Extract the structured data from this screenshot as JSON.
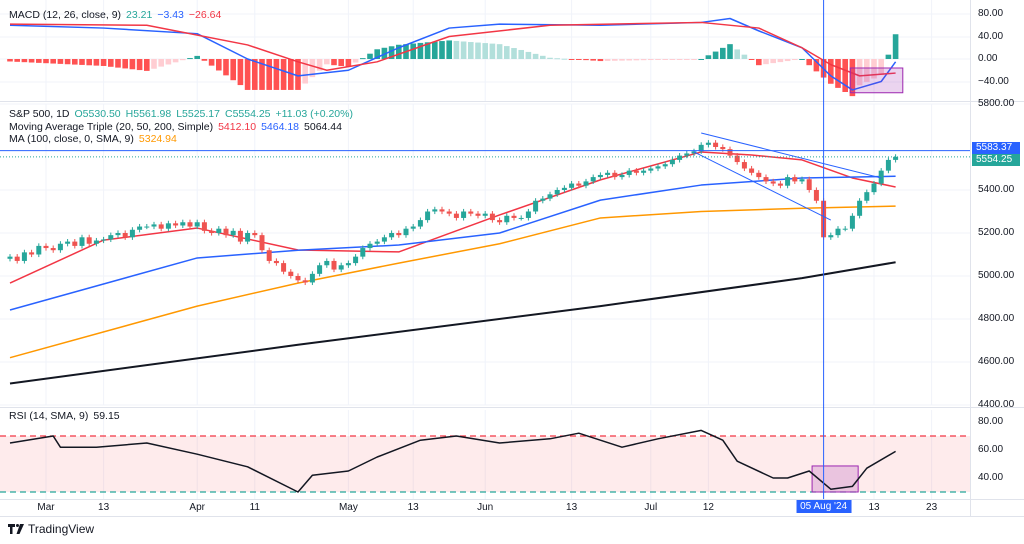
{
  "chart_data": {
    "type": "candlestick",
    "symbol_legend": {
      "name": "S&P 500, 1D",
      "open": "O5530.50",
      "high": "H5561.98",
      "low": "L5525.17",
      "close": "C5554.25",
      "change": "+11.03 (+0.20%)"
    },
    "ma_triple_legend": {
      "label": "Moving Average Triple (20, 50, 200, Simple)",
      "v20": "5412.10",
      "v50": "5464.18",
      "v200": "5064.44"
    },
    "ma100_legend": {
      "label": "MA (100, close, 0, SMA, 9)",
      "value": "5324.94"
    },
    "macd_legend": {
      "label": "MACD (12, 26, close, 9)",
      "hist": "23.21",
      "macd": "−3.43",
      "signal": "−26.64"
    },
    "rsi_legend": {
      "label": "RSI (14, SMA, 9)",
      "value": "59.15"
    },
    "closes": [
      5090,
      5070,
      5110,
      5100,
      5140,
      5130,
      5120,
      5150,
      5160,
      5140,
      5180,
      5150,
      5165,
      5170,
      5190,
      5200,
      5180,
      5215,
      5230,
      5230,
      5240,
      5220,
      5245,
      5235,
      5250,
      5230,
      5250,
      5210,
      5200,
      5220,
      5190,
      5210,
      5160,
      5200,
      5190,
      5120,
      5070,
      5060,
      5020,
      5000,
      4980,
      4970,
      5010,
      5050,
      5070,
      5030,
      5050,
      5060,
      5090,
      5130,
      5150,
      5160,
      5180,
      5200,
      5190,
      5220,
      5230,
      5260,
      5300,
      5310,
      5300,
      5290,
      5270,
      5300,
      5290,
      5280,
      5290,
      5260,
      5250,
      5280,
      5270,
      5270,
      5300,
      5350,
      5360,
      5380,
      5400,
      5410,
      5430,
      5420,
      5440,
      5460,
      5470,
      5480,
      5460,
      5470,
      5490,
      5480,
      5490,
      5500,
      5510,
      5520,
      5540,
      5560,
      5570,
      5580,
      5610,
      5620,
      5600,
      5590,
      5560,
      5530,
      5500,
      5480,
      5460,
      5440,
      5430,
      5420,
      5460,
      5440,
      5450,
      5400,
      5350,
      5180,
      5190,
      5220,
      5220,
      5280,
      5350,
      5390,
      5430,
      5490,
      5540,
      5554.25
    ],
    "moving_averages": [
      {
        "name": "SMA 20",
        "color": "#f23645",
        "points": [
          [
            0,
            4967
          ],
          [
            13,
            5167
          ],
          [
            26,
            5223
          ],
          [
            40,
            5121
          ],
          [
            54,
            5112
          ],
          [
            68,
            5284
          ],
          [
            82,
            5447
          ],
          [
            96,
            5577
          ],
          [
            103,
            5563
          ],
          [
            110,
            5540
          ],
          [
            117,
            5456
          ],
          [
            123,
            5414
          ]
        ]
      },
      {
        "name": "SMA 50",
        "color": "#2962ff",
        "points": [
          [
            0,
            4842
          ],
          [
            26,
            5084
          ],
          [
            40,
            5120
          ],
          [
            54,
            5144
          ],
          [
            68,
            5200
          ],
          [
            82,
            5353
          ],
          [
            96,
            5423
          ],
          [
            110,
            5456
          ],
          [
            123,
            5464
          ]
        ]
      },
      {
        "name": "SMA 200",
        "color": "#131722",
        "points": [
          [
            0,
            4500
          ],
          [
            40,
            4680
          ],
          [
            82,
            4860
          ],
          [
            110,
            4990
          ],
          [
            123,
            5064
          ]
        ]
      },
      {
        "name": "SMA 100",
        "color": "#ff9800",
        "points": [
          [
            0,
            4620
          ],
          [
            26,
            4860
          ],
          [
            40,
            4967
          ],
          [
            54,
            5060
          ],
          [
            68,
            5150
          ],
          [
            82,
            5270
          ],
          [
            96,
            5300
          ],
          [
            110,
            5315
          ],
          [
            123,
            5325
          ]
        ]
      }
    ],
    "price_axis": {
      "ticks": [
        "5800.00",
        "5400.00",
        "5200.00",
        "5000.00",
        "4800.00",
        "4600.00",
        "4400.00"
      ],
      "range": [
        4400,
        5800
      ]
    },
    "price_tags": [
      {
        "value": "5583.37",
        "color": "#2962ff"
      },
      {
        "value": "5554.25",
        "color": "#26a69a"
      }
    ],
    "horizontal_line": 5583.37,
    "trendlines": [
      [
        [
          96,
          5665
        ],
        [
          121,
          5456
        ]
      ],
      [
        [
          95,
          5577
        ],
        [
          114,
          5260
        ]
      ]
    ],
    "vertical_line_index": 113,
    "macd": {
      "axis_ticks": [
        "80.00",
        "40.00",
        "0.00",
        "−40.00"
      ],
      "range": [
        -80,
        80
      ],
      "macd_points": [
        [
          0,
          60
        ],
        [
          13,
          55
        ],
        [
          26,
          45
        ],
        [
          33,
          0
        ],
        [
          40,
          -30
        ],
        [
          47,
          -20
        ],
        [
          54,
          20
        ],
        [
          61,
          55
        ],
        [
          68,
          62
        ],
        [
          82,
          60
        ],
        [
          96,
          65
        ],
        [
          100,
          72
        ],
        [
          104,
          50
        ],
        [
          110,
          20
        ],
        [
          114,
          -30
        ],
        [
          117,
          -55
        ],
        [
          121,
          -40
        ],
        [
          123,
          -5
        ]
      ],
      "signal_points": [
        [
          0,
          62
        ],
        [
          19,
          60
        ],
        [
          33,
          25
        ],
        [
          40,
          -5
        ],
        [
          44,
          -20
        ],
        [
          51,
          -5
        ],
        [
          61,
          40
        ],
        [
          75,
          60
        ],
        [
          96,
          65
        ],
        [
          104,
          55
        ],
        [
          110,
          20
        ],
        [
          114,
          -10
        ],
        [
          118,
          -30
        ],
        [
          123,
          -25
        ]
      ],
      "box": {
        "from": 116.7,
        "to": 124,
        "top": -16,
        "bottom": -60
      }
    },
    "rsi": {
      "axis_ticks": [
        "80.00",
        "60.00",
        "40.00"
      ],
      "upper_band": 70,
      "lower_band": 30,
      "points": [
        [
          0,
          65
        ],
        [
          6,
          70
        ],
        [
          7,
          62
        ],
        [
          12,
          62
        ],
        [
          19,
          65
        ],
        [
          26,
          57
        ],
        [
          33,
          48
        ],
        [
          40,
          30
        ],
        [
          42,
          42
        ],
        [
          47,
          45
        ],
        [
          51,
          55
        ],
        [
          57,
          67
        ],
        [
          62,
          70
        ],
        [
          68,
          65
        ],
        [
          75,
          68
        ],
        [
          79,
          72
        ],
        [
          85,
          62
        ],
        [
          90,
          68
        ],
        [
          96,
          74
        ],
        [
          99,
          67
        ],
        [
          101,
          52
        ],
        [
          106,
          40
        ],
        [
          108,
          40
        ],
        [
          111,
          45
        ],
        [
          114,
          32
        ],
        [
          117,
          34
        ],
        [
          119,
          47
        ],
        [
          123,
          59
        ]
      ],
      "box": {
        "from": 111.4,
        "to": 117.8,
        "top": 48.6,
        "bottom": 30
      }
    },
    "x_ticks": [
      {
        "label": "Mar",
        "i": 5
      },
      {
        "label": "13",
        "i": 13
      },
      {
        "label": "Apr",
        "i": 26
      },
      {
        "label": "11",
        "i": 34
      },
      {
        "label": "May",
        "i": 47
      },
      {
        "label": "13",
        "i": 56
      },
      {
        "label": "Jun",
        "i": 66
      },
      {
        "label": "13",
        "i": 78
      },
      {
        "label": "Jul",
        "i": 89
      },
      {
        "label": "12",
        "i": 97
      },
      {
        "label": "13",
        "i": 120
      },
      {
        "label": "23",
        "i": 128
      }
    ],
    "crosshair_date": "05 Aug '24"
  },
  "brand": "TradingView"
}
